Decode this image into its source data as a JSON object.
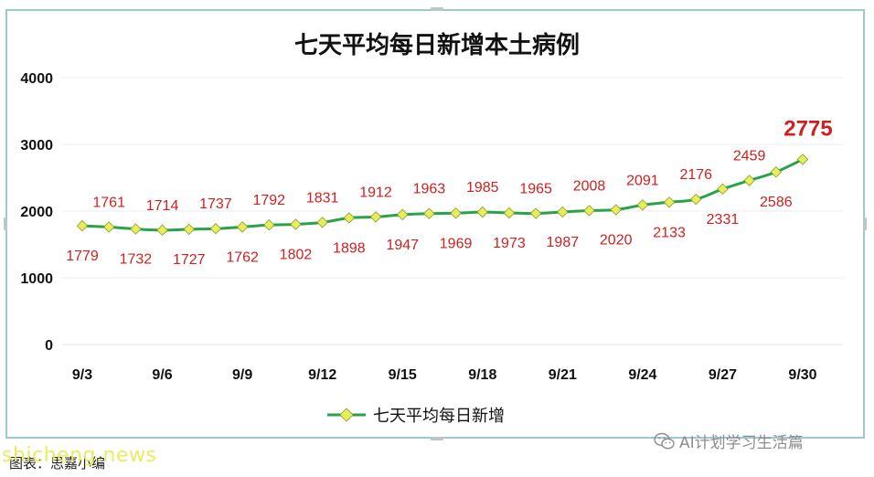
{
  "chart_data": {
    "type": "line",
    "title": "七天平均每日新增本土病例",
    "xlabel": "",
    "ylabel": "",
    "ylim": [
      0,
      4000
    ],
    "yticks": [
      "0",
      "1000",
      "2000",
      "3000",
      "4000"
    ],
    "x_tick_labels": [
      "9/3",
      "9/6",
      "9/9",
      "9/12",
      "9/15",
      "9/18",
      "9/21",
      "9/24",
      "9/27",
      "9/30"
    ],
    "x": [
      "9/3",
      "9/4",
      "9/5",
      "9/6",
      "9/7",
      "9/8",
      "9/9",
      "9/10",
      "9/11",
      "9/12",
      "9/13",
      "9/14",
      "9/15",
      "9/16",
      "9/17",
      "9/18",
      "9/19",
      "9/20",
      "9/21",
      "9/22",
      "9/23",
      "9/24",
      "9/25",
      "9/26",
      "9/27",
      "9/28",
      "9/29",
      "9/30"
    ],
    "series": [
      {
        "name": "七天平均每日新增",
        "values": [
          1779,
          1761,
          1732,
          1714,
          1727,
          1737,
          1762,
          1792,
          1802,
          1831,
          1898,
          1912,
          1947,
          1963,
          1969,
          1985,
          1973,
          1965,
          1987,
          2008,
          2020,
          2091,
          2133,
          2176,
          2331,
          2459,
          2586,
          2775
        ],
        "labels": [
          "1779",
          "1761",
          "1732",
          "1714",
          "1727",
          "1737",
          "1762",
          "1792",
          "1802",
          "1831",
          "1898",
          "1912",
          "1947",
          "1963",
          "1969",
          "1985",
          "1973",
          "1965",
          "1987",
          "2008",
          "2020",
          "2091",
          "2133",
          "2176",
          "2331",
          "2459",
          "2586",
          "2775"
        ],
        "color": "#2aa24a",
        "marker_color": "#e6ee5a"
      }
    ],
    "label_color": "#d11f1f",
    "grid": true,
    "legend_position": "bottom"
  },
  "footer": {
    "caption": "图表：思嘉小编",
    "site_watermark": "shicheng.news",
    "wechat_watermark": "AI计划学习生活篇"
  }
}
